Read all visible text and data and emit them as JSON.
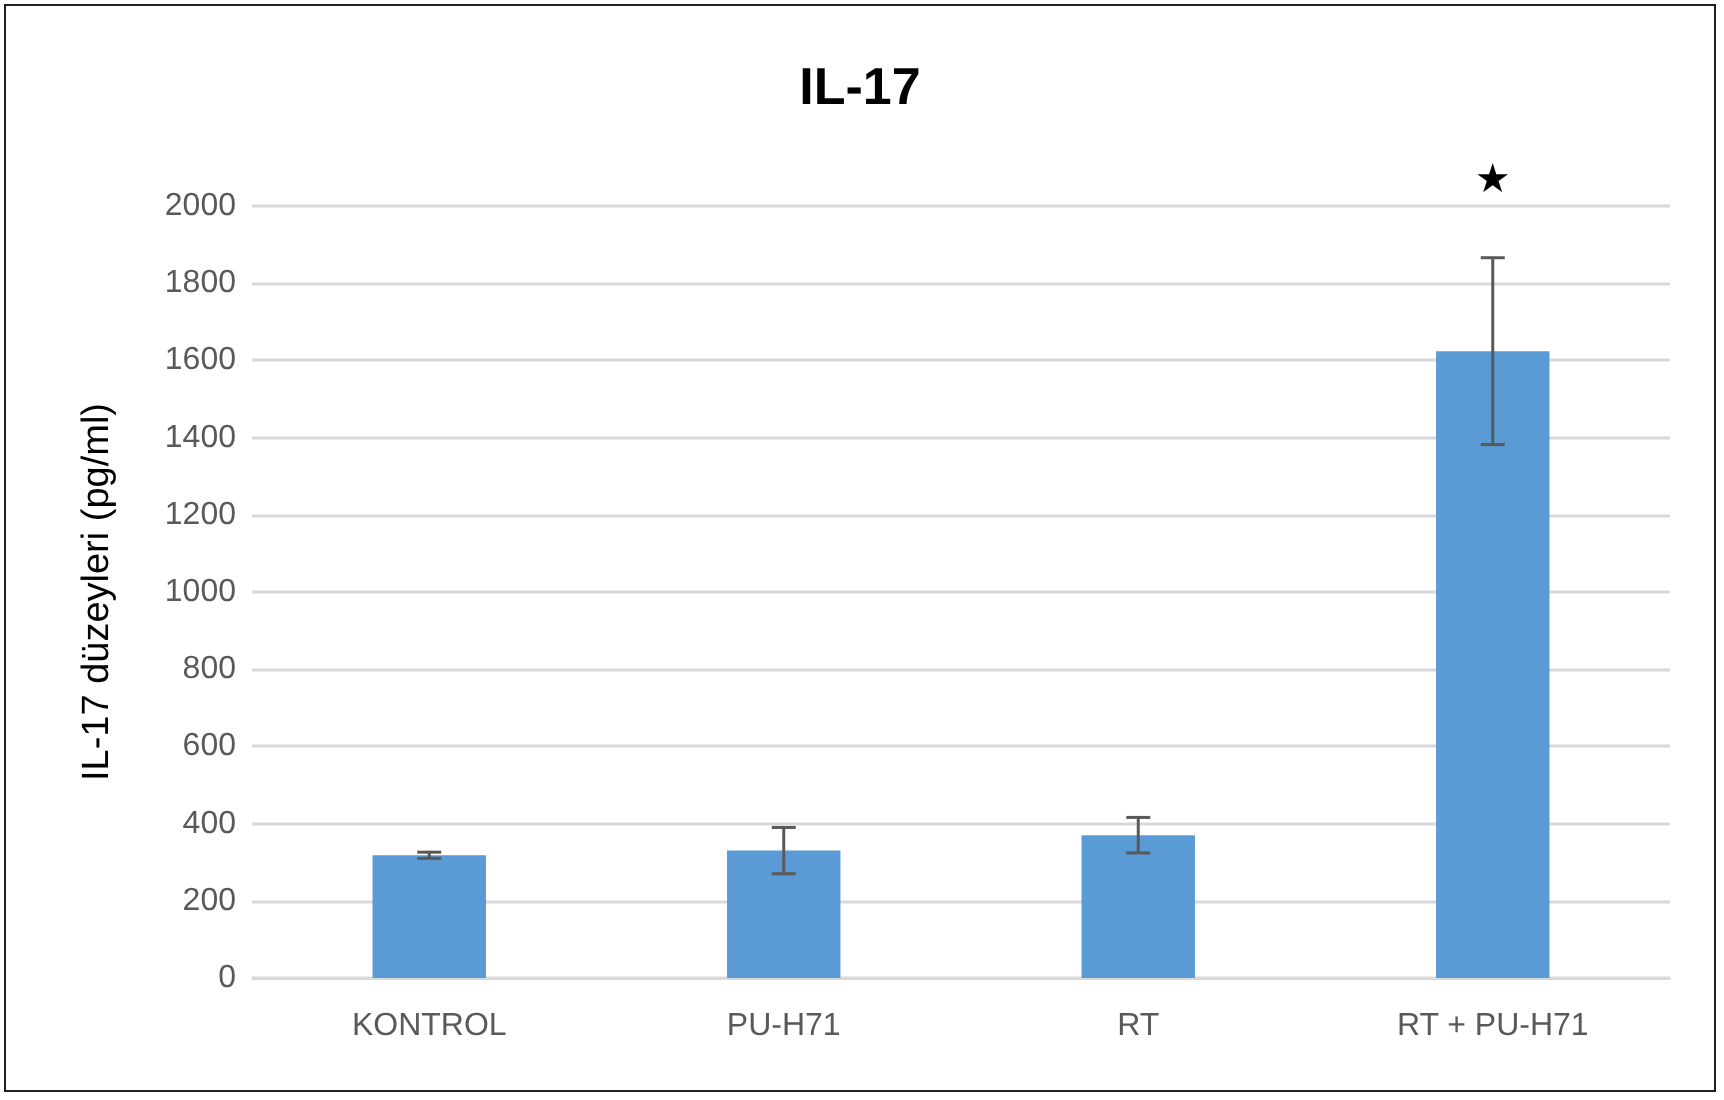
{
  "chart_data": {
    "type": "bar",
    "title": "IL-17",
    "ylabel": "IL-17 düzeyleri (pg/ml)",
    "categories": [
      "KONTROL",
      "PU-H71",
      "RT",
      "RT + PU-H71"
    ],
    "values": [
      318,
      330,
      370,
      1624
    ],
    "errors": [
      8,
      60,
      46,
      242
    ],
    "color": "#5b9bd5",
    "ylim": [
      0,
      2000
    ],
    "yticks": [
      0,
      200,
      400,
      600,
      800,
      1000,
      1200,
      1400,
      1600,
      1800,
      2000
    ],
    "grid": "y",
    "annotations": [
      "★"
    ]
  }
}
